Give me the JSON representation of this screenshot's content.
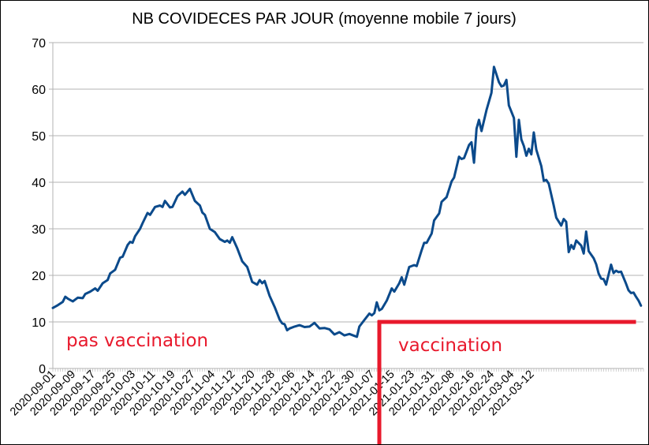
{
  "chart_data": {
    "type": "line",
    "title": "NB COVIDECES PAR JOUR (moyenne mobile 7 jours)",
    "xlabel": "",
    "ylabel": "",
    "ylim": [
      0,
      70
    ],
    "y_ticks": [
      0,
      10,
      20,
      30,
      40,
      50,
      60,
      70
    ],
    "grid": "horizontal",
    "legend": "none",
    "x_tick_labels": [
      "2020-09-01",
      "2020-09-09",
      "2020-09-17",
      "2020-09-25",
      "2020-10-03",
      "2020-10-11",
      "2020-10-19",
      "2020-10-27",
      "2020-11-04",
      "2020-11-12",
      "2020-11-20",
      "2020-11-28",
      "2020-12-06",
      "2020-12-14",
      "2020-12-22",
      "2020-12-30",
      "2021-01-07",
      "2021-01-15",
      "2021-01-23",
      "2021-01-31",
      "2021-02-08",
      "2021-02-16",
      "2021-02-24",
      "2021-03-04",
      "2021-03-12"
    ],
    "x_start": "2020-09-01",
    "x_end": "2021-03-20",
    "series": [
      {
        "color": "#0b4a8b",
        "points": [
          [
            "2020-09-01",
            13.0
          ],
          [
            "2020-09-03",
            13.6
          ],
          [
            "2020-09-05",
            14.3
          ],
          [
            "2020-09-06",
            15.4
          ],
          [
            "2020-09-07",
            15.0
          ],
          [
            "2020-09-09",
            14.4
          ],
          [
            "2020-09-11",
            15.2
          ],
          [
            "2020-09-13",
            15.1
          ],
          [
            "2020-09-14",
            16.0
          ],
          [
            "2020-09-16",
            16.5
          ],
          [
            "2020-09-18",
            17.2
          ],
          [
            "2020-09-19",
            16.7
          ],
          [
            "2020-09-21",
            18.3
          ],
          [
            "2020-09-23",
            19.0
          ],
          [
            "2020-09-24",
            20.4
          ],
          [
            "2020-09-26",
            21.2
          ],
          [
            "2020-09-28",
            23.8
          ],
          [
            "2020-09-29",
            24.0
          ],
          [
            "2020-10-01",
            26.5
          ],
          [
            "2020-10-02",
            27.2
          ],
          [
            "2020-10-03",
            27.0
          ],
          [
            "2020-10-04",
            28.4
          ],
          [
            "2020-10-06",
            30.0
          ],
          [
            "2020-10-07",
            31.2
          ],
          [
            "2020-10-09",
            33.4
          ],
          [
            "2020-10-10",
            33.0
          ],
          [
            "2020-10-12",
            34.7
          ],
          [
            "2020-10-14",
            35.0
          ],
          [
            "2020-10-15",
            34.7
          ],
          [
            "2020-10-16",
            36.0
          ],
          [
            "2020-10-18",
            34.6
          ],
          [
            "2020-10-19",
            34.7
          ],
          [
            "2020-10-21",
            37.0
          ],
          [
            "2020-10-23",
            38.0
          ],
          [
            "2020-10-24",
            37.3
          ],
          [
            "2020-10-26",
            38.6
          ],
          [
            "2020-10-28",
            36.0
          ],
          [
            "2020-10-30",
            35.0
          ],
          [
            "2020-10-31",
            33.5
          ],
          [
            "2020-11-01",
            33.0
          ],
          [
            "2020-11-03",
            30.0
          ],
          [
            "2020-11-05",
            29.3
          ],
          [
            "2020-11-07",
            27.8
          ],
          [
            "2020-11-09",
            27.2
          ],
          [
            "2020-11-10",
            27.5
          ],
          [
            "2020-11-11",
            27.0
          ],
          [
            "2020-11-12",
            28.2
          ],
          [
            "2020-11-14",
            25.8
          ],
          [
            "2020-11-16",
            23.0
          ],
          [
            "2020-11-18",
            21.8
          ],
          [
            "2020-11-20",
            18.6
          ],
          [
            "2020-11-22",
            18.0
          ],
          [
            "2020-11-23",
            19.0
          ],
          [
            "2020-11-24",
            18.3
          ],
          [
            "2020-11-25",
            18.8
          ],
          [
            "2020-11-27",
            15.6
          ],
          [
            "2020-11-29",
            13.2
          ],
          [
            "2020-12-01",
            10.5
          ],
          [
            "2020-12-02",
            9.7
          ],
          [
            "2020-12-03",
            9.5
          ],
          [
            "2020-12-04",
            8.2
          ],
          [
            "2020-12-05",
            8.6
          ],
          [
            "2020-12-07",
            9.0
          ],
          [
            "2020-12-09",
            9.3
          ],
          [
            "2020-12-11",
            8.9
          ],
          [
            "2020-12-13",
            9.0
          ],
          [
            "2020-12-15",
            9.8
          ],
          [
            "2020-12-17",
            8.6
          ],
          [
            "2020-12-19",
            8.7
          ],
          [
            "2020-12-21",
            8.4
          ],
          [
            "2020-12-23",
            7.3
          ],
          [
            "2020-12-25",
            7.8
          ],
          [
            "2020-12-27",
            7.1
          ],
          [
            "2020-12-29",
            7.4
          ],
          [
            "2020-12-31",
            7.0
          ],
          [
            "2021-01-01",
            6.8
          ],
          [
            "2021-01-02",
            9.0
          ],
          [
            "2021-01-04",
            10.4
          ],
          [
            "2021-01-06",
            11.8
          ],
          [
            "2021-01-07",
            11.4
          ],
          [
            "2021-01-08",
            11.9
          ],
          [
            "2021-01-09",
            14.2
          ],
          [
            "2021-01-10",
            12.5
          ],
          [
            "2021-01-11",
            12.8
          ],
          [
            "2021-01-13",
            14.6
          ],
          [
            "2021-01-15",
            17.2
          ],
          [
            "2021-01-16",
            16.5
          ],
          [
            "2021-01-18",
            18.3
          ],
          [
            "2021-01-19",
            19.6
          ],
          [
            "2021-01-20",
            18.0
          ],
          [
            "2021-01-22",
            21.8
          ],
          [
            "2021-01-24",
            22.2
          ],
          [
            "2021-01-25",
            22.0
          ],
          [
            "2021-01-27",
            25.4
          ],
          [
            "2021-01-28",
            27.0
          ],
          [
            "2021-01-29",
            27.0
          ],
          [
            "2021-01-31",
            29.0
          ],
          [
            "2021-02-01",
            31.8
          ],
          [
            "2021-02-03",
            33.3
          ],
          [
            "2021-02-04",
            35.8
          ],
          [
            "2021-02-06",
            36.8
          ],
          [
            "2021-02-08",
            40.2
          ],
          [
            "2021-02-09",
            41.0
          ],
          [
            "2021-02-11",
            45.5
          ],
          [
            "2021-02-12",
            45.0
          ],
          [
            "2021-02-13",
            45.2
          ],
          [
            "2021-02-15",
            48.0
          ],
          [
            "2021-02-16",
            48.6
          ],
          [
            "2021-02-17",
            44.2
          ],
          [
            "2021-02-18",
            51.5
          ],
          [
            "2021-02-19",
            53.4
          ],
          [
            "2021-02-20",
            51.0
          ],
          [
            "2021-02-22",
            55.5
          ],
          [
            "2021-02-24",
            59.2
          ],
          [
            "2021-02-25",
            64.8
          ],
          [
            "2021-02-27",
            61.5
          ],
          [
            "2021-02-28",
            60.6
          ],
          [
            "2021-03-01",
            60.8
          ],
          [
            "2021-03-02",
            62.0
          ],
          [
            "2021-03-03",
            56.5
          ],
          [
            "2021-03-05",
            53.8
          ],
          [
            "2021-03-06",
            45.5
          ],
          [
            "2021-03-07",
            53.4
          ],
          [
            "2021-03-08",
            49.2
          ],
          [
            "2021-03-09",
            47.8
          ],
          [
            "2021-03-10",
            45.7
          ],
          [
            "2021-03-11",
            47.2
          ],
          [
            "2021-03-12",
            46.0
          ],
          [
            "2021-03-13",
            50.7
          ],
          [
            "2021-03-14",
            47.0
          ],
          [
            "2021-03-16",
            43.5
          ],
          [
            "2021-03-17",
            40.3
          ],
          [
            "2021-03-18",
            40.5
          ],
          [
            "2021-03-19",
            39.7
          ],
          [
            "2021-03-21",
            35.0
          ],
          [
            "2021-03-22",
            32.4
          ],
          [
            "2021-03-24",
            30.7
          ],
          [
            "2021-03-25",
            32.1
          ],
          [
            "2021-03-26",
            31.5
          ],
          [
            "2021-03-27",
            25.0
          ],
          [
            "2021-03-28",
            26.5
          ],
          [
            "2021-03-29",
            25.7
          ],
          [
            "2021-03-30",
            27.5
          ],
          [
            "2021-04-01",
            26.4
          ],
          [
            "2021-04-02",
            24.7
          ],
          [
            "2021-04-03",
            29.4
          ],
          [
            "2021-04-04",
            25.2
          ],
          [
            "2021-04-06",
            23.7
          ],
          [
            "2021-04-07",
            22.4
          ],
          [
            "2021-04-08",
            20.4
          ],
          [
            "2021-04-09",
            19.3
          ],
          [
            "2021-04-10",
            19.2
          ],
          [
            "2021-04-11",
            18.0
          ],
          [
            "2021-04-12",
            20.2
          ],
          [
            "2021-04-13",
            22.3
          ],
          [
            "2021-04-14",
            20.5
          ],
          [
            "2021-04-15",
            21.0
          ],
          [
            "2021-04-16",
            20.7
          ],
          [
            "2021-04-17",
            20.8
          ],
          [
            "2021-04-19",
            18.2
          ],
          [
            "2021-04-20",
            16.8
          ],
          [
            "2021-04-21",
            16.2
          ],
          [
            "2021-04-22",
            16.3
          ],
          [
            "2021-04-23",
            15.4
          ],
          [
            "2021-04-24",
            14.6
          ],
          [
            "2021-04-25",
            13.5
          ]
        ]
      }
    ],
    "annotations": [
      {
        "text": "pas vaccination",
        "color": "#e8192c"
      },
      {
        "text": "vaccination",
        "color": "#e8192c"
      }
    ],
    "vaccination_marker": {
      "color": "#e8192c",
      "start_x": "2021-01-10",
      "end_x": "2021-04-23",
      "y": 10
    }
  }
}
